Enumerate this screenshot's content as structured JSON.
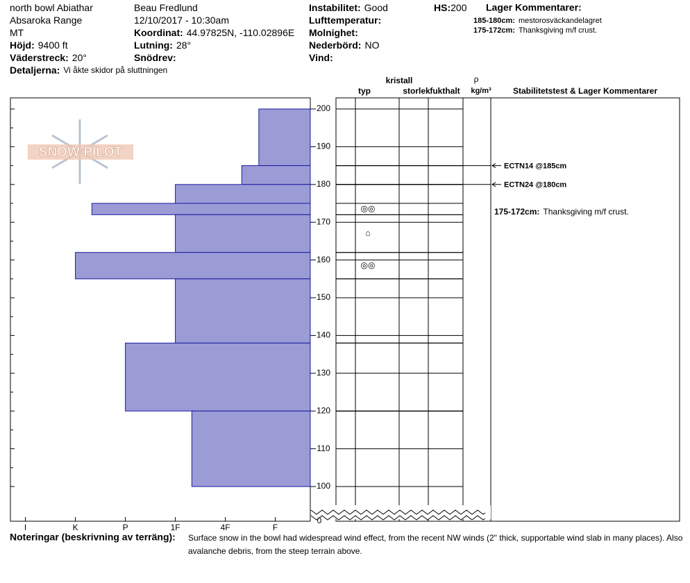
{
  "header": {
    "columns": [
      [
        {
          "value": "north bowl Abiathar"
        },
        {
          "value": "Absaroka Range"
        },
        {
          "value": "MT"
        },
        {
          "label": "Höjd:",
          "value": "9400 ft"
        },
        {
          "label": "Väderstreck:",
          "value": "20°"
        },
        {
          "label": "Detaljerna:",
          "value": "Vi åkte skidor på sluttningen"
        }
      ],
      [
        {
          "value": "Beau  Fredlund"
        },
        {
          "value": "12/10/2017 - 10:30am"
        },
        {
          "label": "Koordinat:",
          "value": "44.97825N, -110.02896E"
        },
        {
          "label": "Lutning:",
          "value": "28°"
        },
        {
          "label": "Snödrev:"
        }
      ],
      [
        {
          "label": "Instabilitet:",
          "value": "Good"
        },
        {
          "label": "Lufttemperatur:"
        },
        {
          "label": "Molnighet:"
        },
        {
          "label": "Nederbörd:",
          "value": "NO"
        },
        {
          "label": "Vind:"
        }
      ]
    ],
    "hs": {
      "label": "HS:",
      "value": "200"
    },
    "comments_title": "Lager Kommentarer:",
    "comments": [
      {
        "label": "185-180cm:",
        "value": "mestorosväckandelagret"
      },
      {
        "label": "175-172cm:",
        "value": "Thanksgiving m/f crust."
      }
    ]
  },
  "logo": "SNOW PILOT",
  "chart_data": {
    "type": "snowprofile",
    "color": "#9b9bd6",
    "ylim": [
      100,
      200
    ],
    "yticks": [
      100,
      110,
      120,
      130,
      140,
      150,
      160,
      170,
      180,
      190,
      200
    ],
    "y_base_label": "0",
    "xlim": [
      6.3,
      0.3
    ],
    "xticks": [
      {
        "value": 6,
        "label": "I"
      },
      {
        "value": 5,
        "label": "K"
      },
      {
        "value": 4,
        "label": "P"
      },
      {
        "value": 3,
        "label": "1F"
      },
      {
        "value": 2,
        "label": "4F"
      },
      {
        "value": 1,
        "label": "F"
      }
    ],
    "layers": [
      {
        "top": 200,
        "bottom": 185,
        "hardness": 1.33
      },
      {
        "top": 185,
        "bottom": 180,
        "hardness": 1.67
      },
      {
        "top": 180,
        "bottom": 175,
        "hardness": 3
      },
      {
        "top": 175,
        "bottom": 172,
        "hardness": 4.67,
        "grain": "◎◎"
      },
      {
        "top": 172,
        "bottom": 162,
        "hardness": 3,
        "grain": "⌂"
      },
      {
        "top": 162,
        "bottom": 155,
        "hardness": 5,
        "grain": "◎◎"
      },
      {
        "top": 155,
        "bottom": 138,
        "hardness": 3
      },
      {
        "top": 138,
        "bottom": 120,
        "hardness": 4
      },
      {
        "top": 120,
        "bottom": 100,
        "hardness": 2.67
      }
    ],
    "columns": {
      "crystal": "kristall",
      "type": "typ",
      "size": "storlek",
      "moisture": "fukthalt",
      "density": "ρ",
      "density_unit": "kg/m³",
      "comments": "Stabilitetstest & Lager Kommentarer"
    },
    "tests": [
      {
        "depth": 185,
        "label": "ECTN14 @185cm"
      },
      {
        "depth": 180,
        "label": "ECTN24 @180cm"
      }
    ],
    "layer_comments": [
      {
        "label": "175-172cm:",
        "value": "Thanksgiving m/f crust."
      }
    ]
  },
  "notes": {
    "label": "Noteringar (beskrivning av terräng):",
    "lines": [
      "Surface snow in the bowl had widespread wind effect, from the recent NW winds (2\" thick, supportable wind slab in many places).  Also",
      "avalanche debris, from the steep terrain above."
    ]
  }
}
